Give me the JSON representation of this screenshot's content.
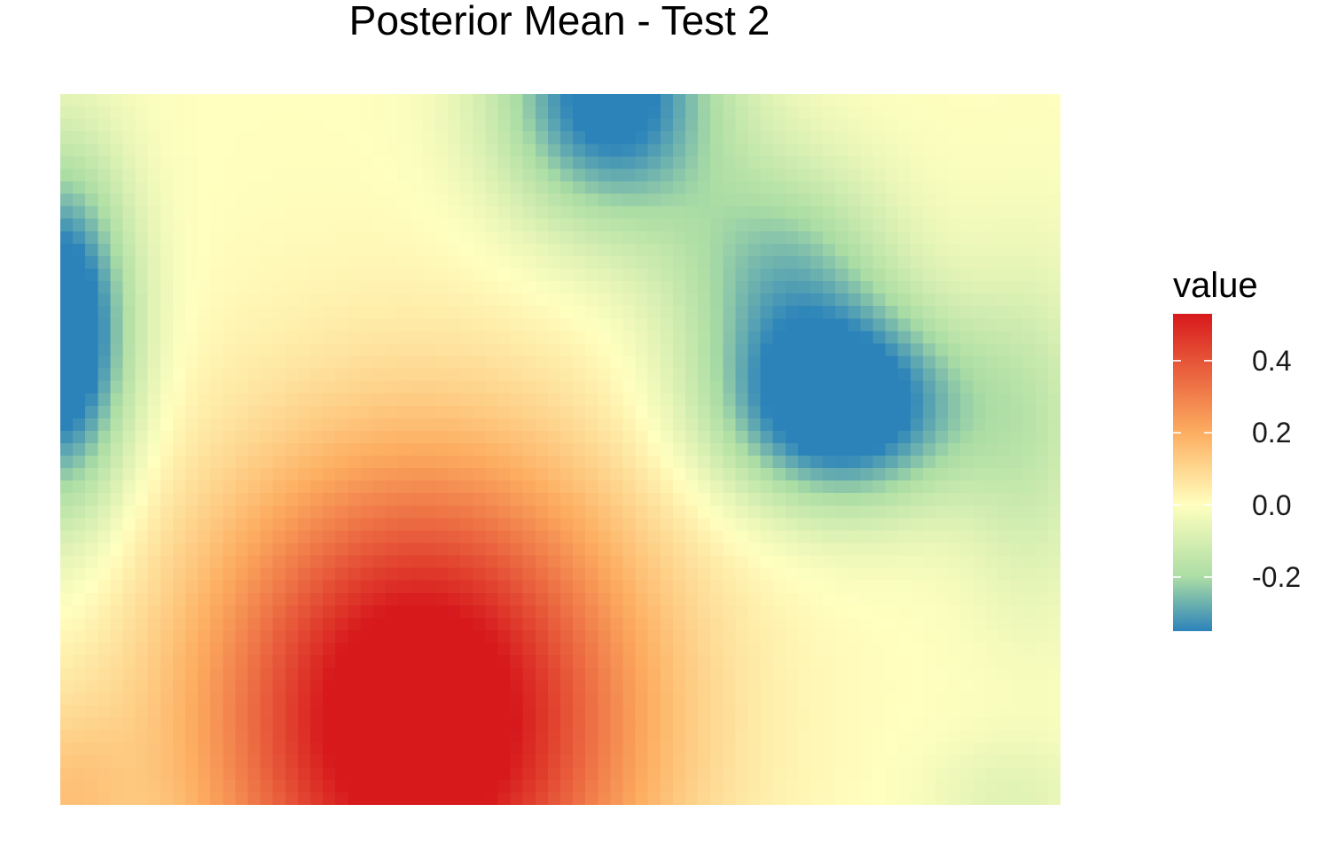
{
  "chart_data": {
    "type": "heatmap",
    "title": "Posterior Mean - Test 2",
    "xlabel": "",
    "ylabel": "",
    "grid": false,
    "legend": {
      "title": "value",
      "placement": "right",
      "range": [
        -0.35,
        0.53
      ],
      "ticks": [
        {
          "value": 0.4,
          "label": "0.4"
        },
        {
          "value": 0.2,
          "label": "0.2"
        },
        {
          "value": 0.0,
          "label": "0.0"
        },
        {
          "value": -0.2,
          "label": "-0.2"
        }
      ]
    },
    "colormap": {
      "name": "Spectral",
      "colors": [
        "#2b83ba",
        "#abdda4",
        "#ffffbf",
        "#fdae61",
        "#d7191c"
      ],
      "domain": [
        -0.35,
        -0.2,
        0.0,
        0.2,
        0.53
      ]
    },
    "grid_resolution": {
      "cols": 80,
      "rows": 57
    },
    "components": [
      {
        "cx": 0.36,
        "cy": 0.88,
        "sx": 0.15,
        "sy": 0.25,
        "amp": 0.65
      },
      {
        "cx": 0.78,
        "cy": 0.44,
        "sx": 0.09,
        "sy": 0.1,
        "amp": -0.45
      },
      {
        "cx": 0.72,
        "cy": 0.24,
        "sx": 0.08,
        "sy": 0.11,
        "amp": -0.22
      },
      {
        "cx": 0.55,
        "cy": 0.0,
        "sx": 0.08,
        "sy": 0.13,
        "amp": -0.4
      },
      {
        "cx": 0.0,
        "cy": 0.34,
        "sx": 0.05,
        "sy": 0.17,
        "amp": -0.48
      },
      {
        "cx": 0.97,
        "cy": 0.48,
        "sx": 0.05,
        "sy": 0.18,
        "amp": -0.12
      },
      {
        "cx": 0.95,
        "cy": 0.99,
        "sx": 0.06,
        "sy": 0.06,
        "amp": -0.07
      },
      {
        "cx": 0.0,
        "cy": 1.0,
        "sx": 0.05,
        "sy": 0.1,
        "amp": 0.12
      }
    ]
  }
}
